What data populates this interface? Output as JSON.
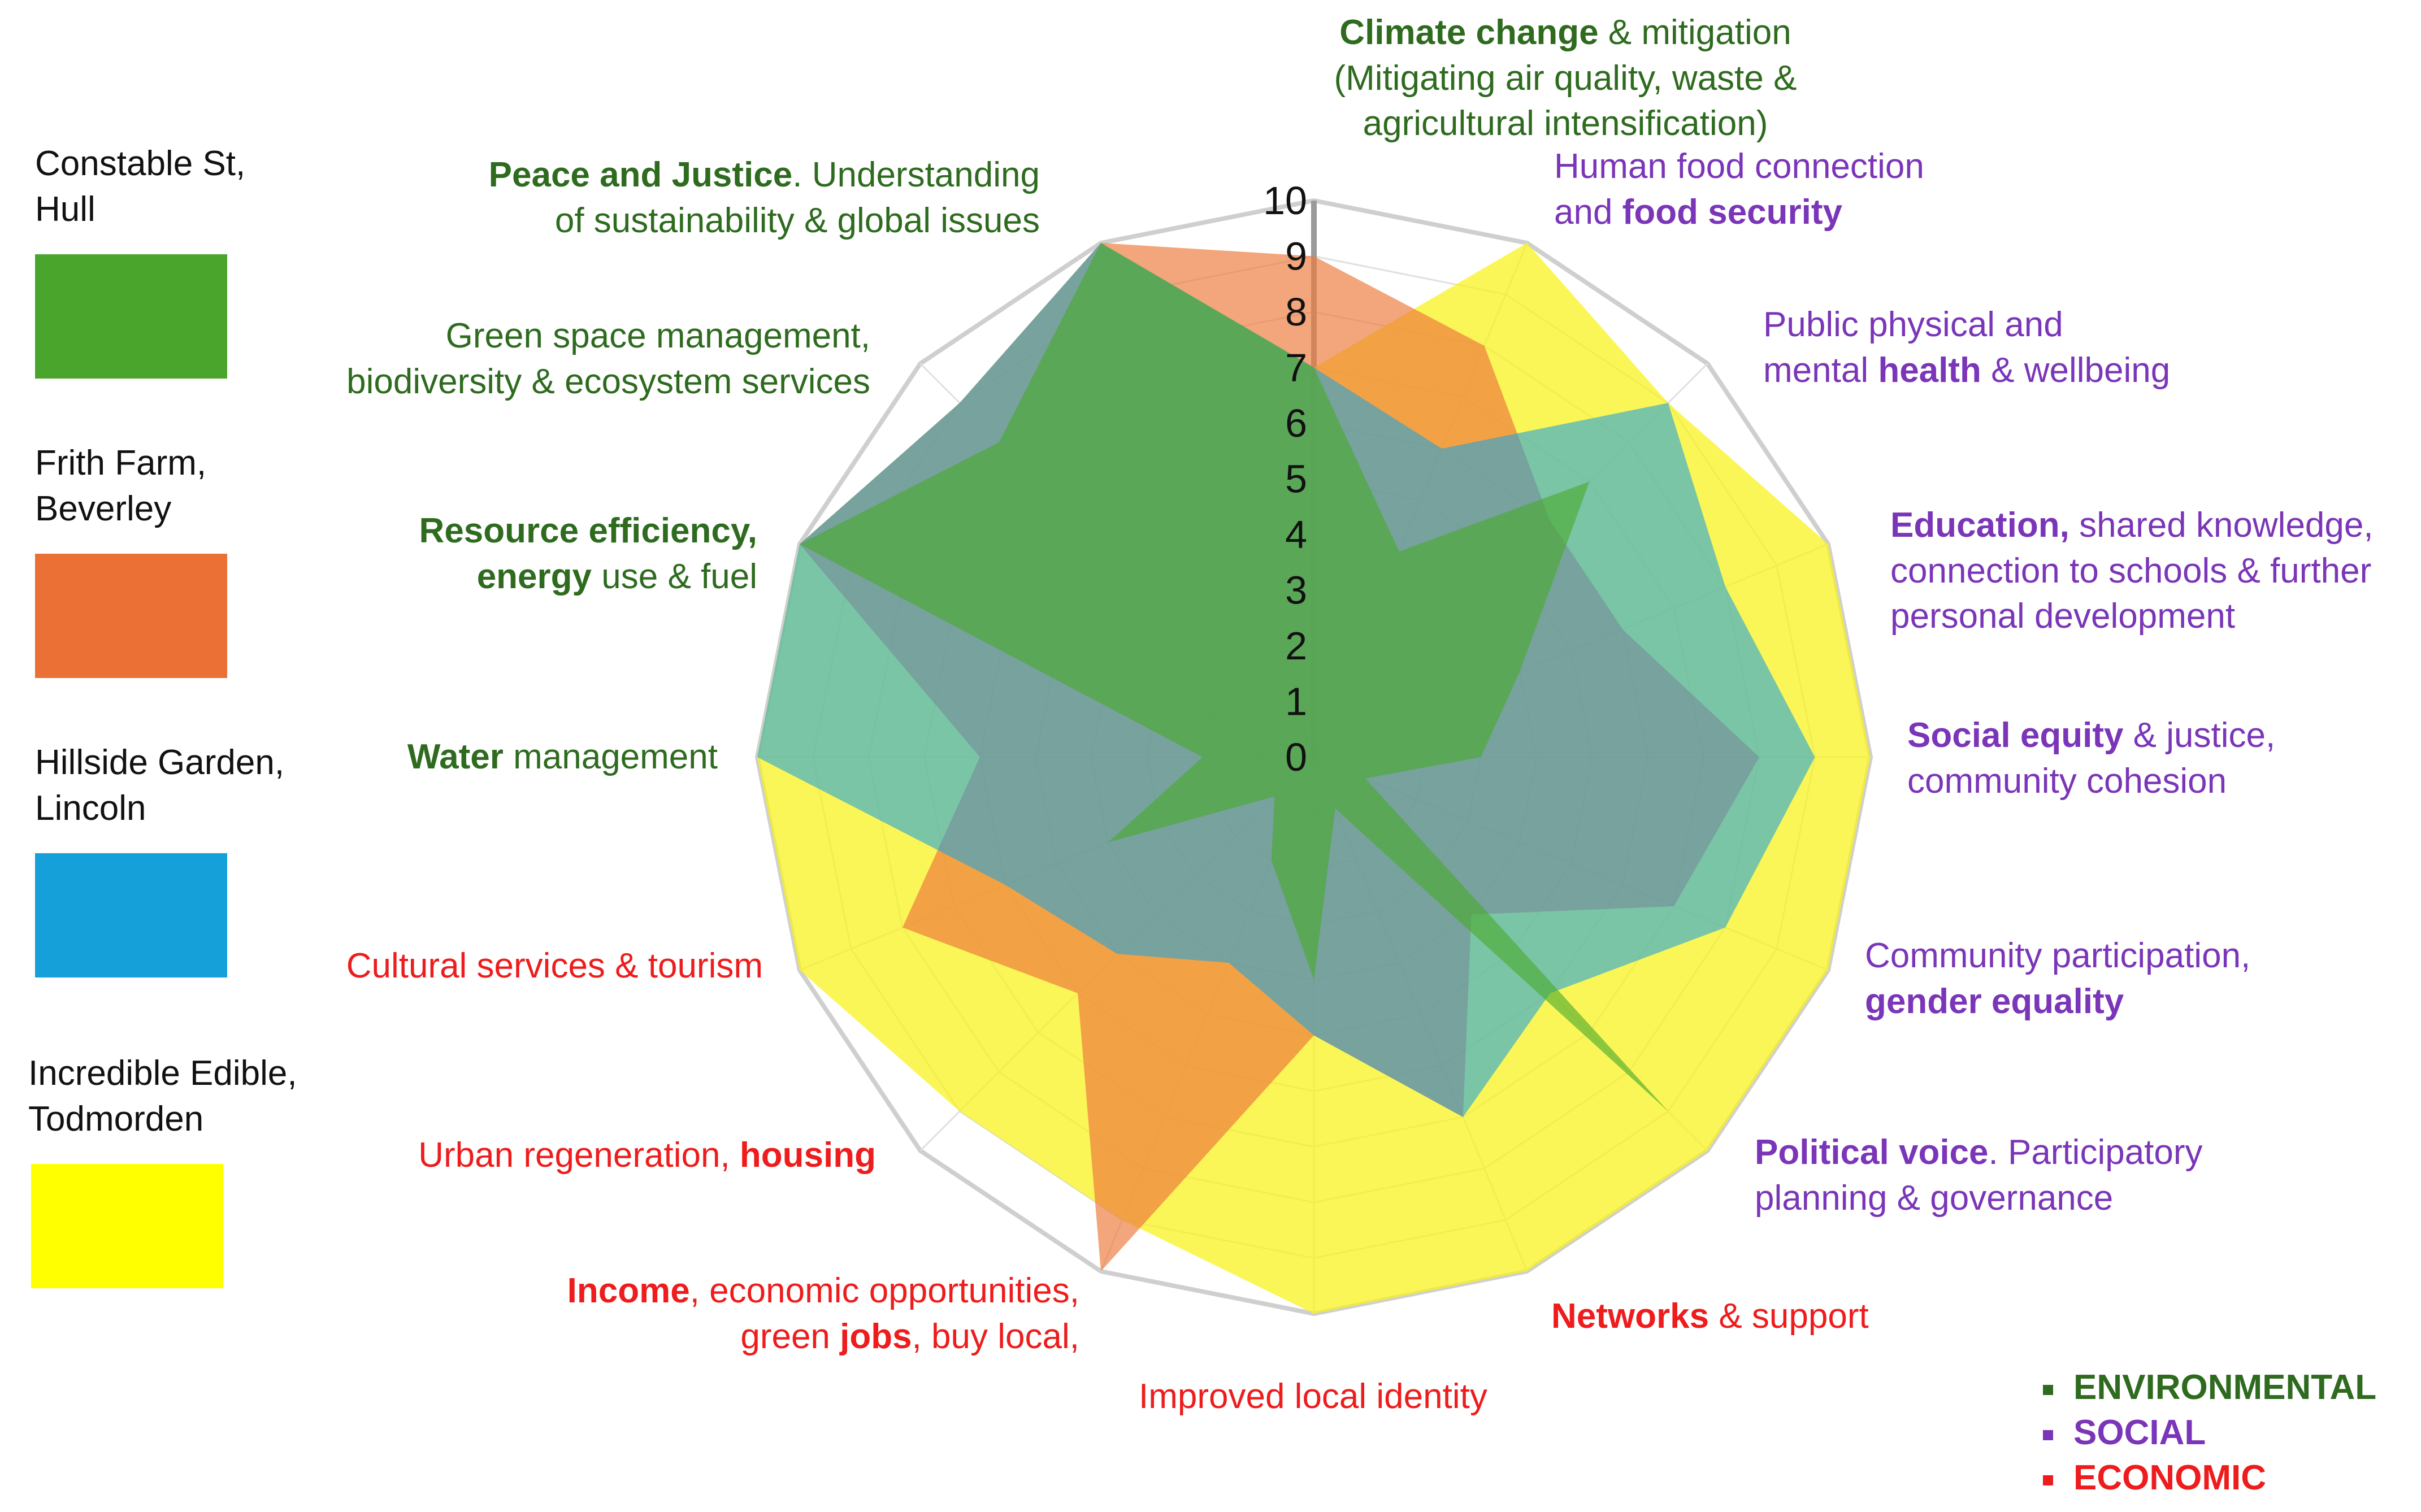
{
  "chart_data": {
    "type": "radar",
    "rlim": [
      0,
      10
    ],
    "r_ticks": [
      "0",
      "1",
      "2",
      "3",
      "4",
      "5",
      "6",
      "7",
      "8",
      "9",
      "10"
    ],
    "axes": [
      {
        "parts": [
          [
            "Climate change",
            true
          ],
          [
            " & mitigation",
            false
          ],
          [
            "\n(Mitigating air quality, waste &\nagricultural intensification)",
            false
          ]
        ],
        "category": "env"
      },
      {
        "parts": [
          [
            "Human food connection\nand ",
            false
          ],
          [
            "food security",
            true
          ]
        ],
        "category": "soc"
      },
      {
        "parts": [
          [
            "Public physical and\nmental ",
            false
          ],
          [
            "health",
            true
          ],
          [
            " & wellbeing",
            false
          ]
        ],
        "category": "soc"
      },
      {
        "parts": [
          [
            "Education,",
            true
          ],
          [
            " shared knowledge,\nconnection to schools & further\npersonal development",
            false
          ]
        ],
        "category": "soc"
      },
      {
        "parts": [
          [
            "Social equity",
            true
          ],
          [
            " & justice,\ncommunity cohesion",
            false
          ]
        ],
        "category": "soc"
      },
      {
        "parts": [
          [
            "Community participation,\n",
            false
          ],
          [
            "gender equality",
            true
          ]
        ],
        "category": "soc"
      },
      {
        "parts": [
          [
            "Political voice",
            true
          ],
          [
            ". Participatory\nplanning & governance",
            false
          ]
        ],
        "category": "soc"
      },
      {
        "parts": [
          [
            "Networks",
            true
          ],
          [
            " & support",
            false
          ]
        ],
        "category": "eco"
      },
      {
        "parts": [
          [
            "Improved local identity",
            false
          ]
        ],
        "category": "eco"
      },
      {
        "parts": [
          [
            "Income",
            true
          ],
          [
            ", economic opportunities,\ngreen ",
            false
          ],
          [
            "jobs",
            true
          ],
          [
            ", buy local,",
            false
          ]
        ],
        "category": "eco"
      },
      {
        "parts": [
          [
            "Urban regeneration, ",
            false
          ],
          [
            "housing",
            true
          ]
        ],
        "category": "eco"
      },
      {
        "parts": [
          [
            "Cultural services & tourism",
            false
          ]
        ],
        "category": "eco"
      },
      {
        "parts": [
          [
            "Water",
            true
          ],
          [
            " management",
            false
          ]
        ],
        "category": "env"
      },
      {
        "parts": [
          [
            "Resource efficiency,\n",
            true
          ],
          [
            "energy",
            true
          ],
          [
            " use & fuel",
            false
          ]
        ],
        "category": "env"
      },
      {
        "parts": [
          [
            "Green space management,\nbiodiversity & ecosystem services",
            false
          ]
        ],
        "category": "env"
      },
      {
        "parts": [
          [
            "Peace and Justice",
            true
          ],
          [
            ". Understanding\nof sustainability & global issues",
            false
          ]
        ],
        "category": "env"
      }
    ],
    "series": [
      {
        "name": "Incredible Edible, Todmorden",
        "color": "#f8f218",
        "opacity": 0.72,
        "values": [
          7,
          10,
          9,
          10,
          10,
          10,
          10,
          10,
          10,
          9,
          9,
          10,
          10,
          10,
          9,
          10
        ]
      },
      {
        "name": "Frith Farm, Beverley",
        "color": "#ee7b3c",
        "opacity": 0.68,
        "values": [
          9,
          8,
          6,
          6,
          8,
          7,
          4,
          7,
          5,
          10,
          6,
          8,
          6,
          10,
          9,
          10
        ]
      },
      {
        "name": "Hillside Garden, Lincoln",
        "color": "#1ea2df",
        "opacity": 0.58,
        "values": [
          7,
          6,
          9,
          8,
          9,
          8,
          6,
          7,
          5,
          4,
          5,
          6,
          10,
          10,
          9,
          10
        ]
      },
      {
        "name": "Constable St, Hull",
        "color": "#4aa92d",
        "opacity": 0.62,
        "values": [
          7,
          4,
          7,
          4,
          3,
          1,
          9,
          1,
          4,
          2,
          1,
          4,
          2,
          10,
          8,
          10
        ]
      }
    ],
    "legend_order": [
      "Constable St, Hull",
      "Frith Farm, Beverley",
      "Hillside Garden, Lincoln",
      "Incredible Edible, Todmorden"
    ],
    "legend_labels": [
      "Constable St,\nHull",
      "Frith Farm,\nBeverley",
      "Hillside Garden,\nLincoln",
      "Incredible Edible,\nTodmorden"
    ],
    "legend_colors": [
      "#4aa52d",
      "#ea7035",
      "#15a0da",
      "#ffff00"
    ],
    "categories_legend": [
      {
        "label": "ENVIRONMENTAL",
        "color": "#2e6b1f"
      },
      {
        "label": "SOCIAL",
        "color": "#7a35b8"
      },
      {
        "label": "ECONOMIC",
        "color": "#ee1c1c"
      }
    ]
  }
}
